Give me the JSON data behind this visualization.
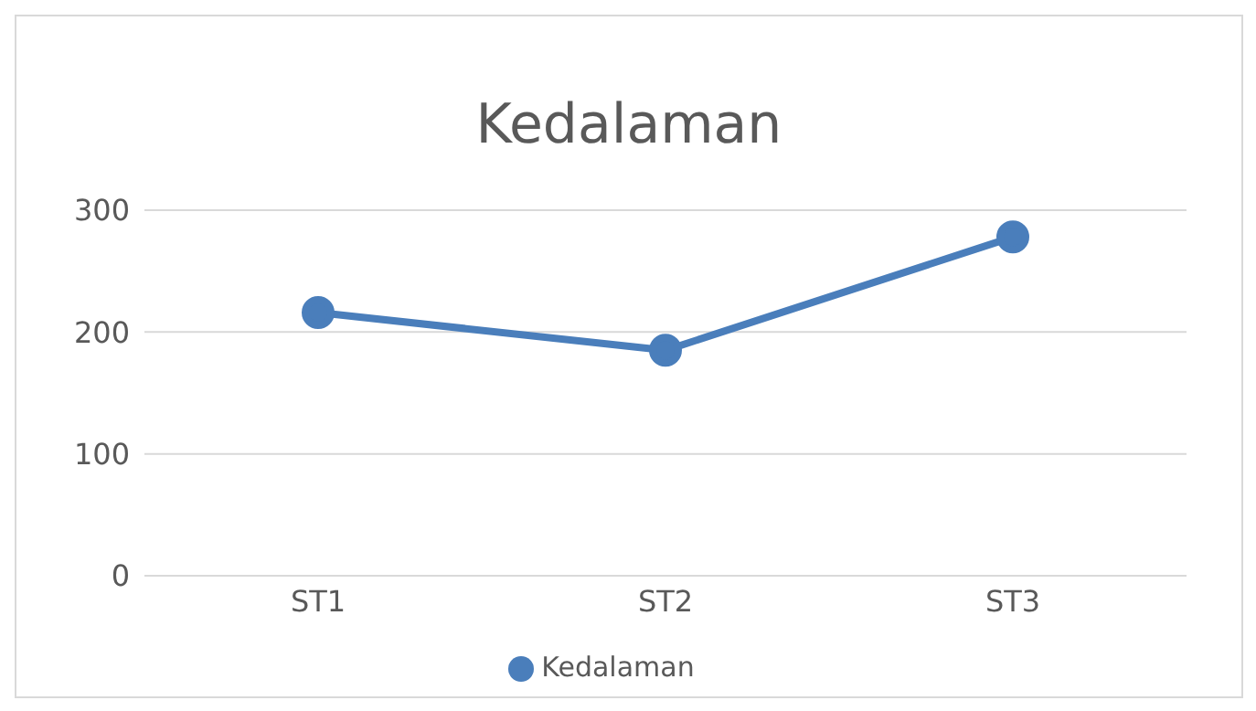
{
  "chart_data": {
    "type": "line",
    "title": "Kedalaman",
    "categories": [
      "ST1",
      "ST2",
      "ST3"
    ],
    "series": [
      {
        "name": "Kedalaman",
        "color": "#4a7ebb",
        "values": [
          216,
          185,
          278
        ]
      }
    ],
    "ylim": [
      0,
      300
    ],
    "yticks": [
      0,
      100,
      200,
      300
    ],
    "grid": "y",
    "legend": "bottom",
    "marker": "circle",
    "line_style": "solid"
  }
}
